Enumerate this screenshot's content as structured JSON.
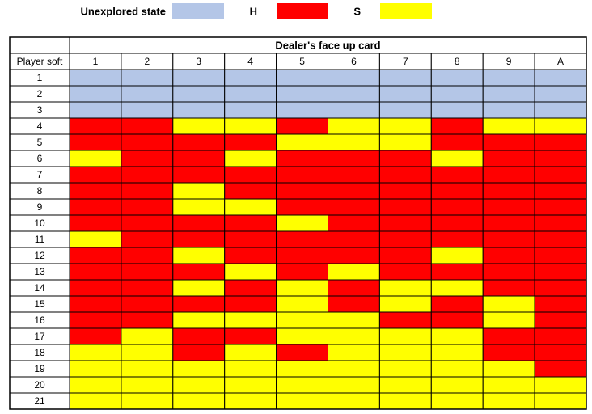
{
  "legend": [
    {
      "label": "Unexplored state",
      "color": "#b4c6e7"
    },
    {
      "label": "H",
      "color": "#ff0000"
    },
    {
      "label": "S",
      "color": "#ffff00"
    }
  ],
  "table": {
    "title": "Dealer's face up card",
    "row_header": "Player soft",
    "columns": [
      "1",
      "2",
      "3",
      "4",
      "5",
      "6",
      "7",
      "8",
      "9",
      "A"
    ],
    "rows": [
      {
        "label": 1,
        "cells": [
          "Unexplored state",
          "Unexplored state",
          "Unexplored state",
          "Unexplored state",
          "Unexplored state",
          "Unexplored state",
          "Unexplored state",
          "Unexplored state",
          "Unexplored state",
          "Unexplored state"
        ]
      },
      {
        "label": 2,
        "cells": [
          "Unexplored state",
          "Unexplored state",
          "Unexplored state",
          "Unexplored state",
          "Unexplored state",
          "Unexplored state",
          "Unexplored state",
          "Unexplored state",
          "Unexplored state",
          "Unexplored state"
        ]
      },
      {
        "label": 3,
        "cells": [
          "Unexplored state",
          "Unexplored state",
          "Unexplored state",
          "Unexplored state",
          "Unexplored state",
          "Unexplored state",
          "Unexplored state",
          "Unexplored state",
          "Unexplored state",
          "Unexplored state"
        ]
      },
      {
        "label": 4,
        "cells": [
          "H",
          "H",
          "S",
          "S",
          "H",
          "S",
          "S",
          "H",
          "S",
          "S"
        ]
      },
      {
        "label": 5,
        "cells": [
          "H",
          "H",
          "H",
          "H",
          "S",
          "S",
          "S",
          "H",
          "H",
          "H"
        ]
      },
      {
        "label": 6,
        "cells": [
          "S",
          "H",
          "H",
          "S",
          "H",
          "H",
          "H",
          "S",
          "H",
          "H"
        ]
      },
      {
        "label": 7,
        "cells": [
          "H",
          "H",
          "H",
          "H",
          "H",
          "H",
          "H",
          "H",
          "H",
          "H"
        ]
      },
      {
        "label": 8,
        "cells": [
          "H",
          "H",
          "S",
          "H",
          "H",
          "H",
          "H",
          "H",
          "H",
          "H"
        ]
      },
      {
        "label": 9,
        "cells": [
          "H",
          "H",
          "S",
          "S",
          "H",
          "H",
          "H",
          "H",
          "H",
          "H"
        ]
      },
      {
        "label": 10,
        "cells": [
          "H",
          "H",
          "H",
          "H",
          "S",
          "H",
          "H",
          "H",
          "H",
          "H"
        ]
      },
      {
        "label": 11,
        "cells": [
          "S",
          "H",
          "H",
          "H",
          "H",
          "H",
          "H",
          "H",
          "H",
          "H"
        ]
      },
      {
        "label": 12,
        "cells": [
          "H",
          "H",
          "S",
          "H",
          "H",
          "H",
          "H",
          "S",
          "H",
          "H"
        ]
      },
      {
        "label": 13,
        "cells": [
          "H",
          "H",
          "H",
          "S",
          "H",
          "S",
          "H",
          "H",
          "H",
          "H"
        ]
      },
      {
        "label": 14,
        "cells": [
          "H",
          "H",
          "S",
          "H",
          "S",
          "H",
          "S",
          "S",
          "H",
          "H"
        ]
      },
      {
        "label": 15,
        "cells": [
          "H",
          "H",
          "H",
          "H",
          "S",
          "H",
          "S",
          "H",
          "S",
          "H"
        ]
      },
      {
        "label": 16,
        "cells": [
          "H",
          "H",
          "S",
          "S",
          "S",
          "S",
          "H",
          "H",
          "S",
          "H"
        ]
      },
      {
        "label": 17,
        "cells": [
          "H",
          "S",
          "H",
          "H",
          "S",
          "S",
          "S",
          "S",
          "H",
          "H"
        ]
      },
      {
        "label": 18,
        "cells": [
          "S",
          "S",
          "H",
          "S",
          "H",
          "S",
          "S",
          "S",
          "H",
          "H"
        ]
      },
      {
        "label": 19,
        "cells": [
          "S",
          "S",
          "S",
          "S",
          "S",
          "S",
          "S",
          "S",
          "S",
          "H"
        ]
      },
      {
        "label": 20,
        "cells": [
          "S",
          "S",
          "S",
          "S",
          "S",
          "S",
          "S",
          "S",
          "S",
          "S"
        ]
      },
      {
        "label": 21,
        "cells": [
          "S",
          "S",
          "S",
          "S",
          "S",
          "S",
          "S",
          "S",
          "S",
          "S"
        ]
      }
    ]
  }
}
